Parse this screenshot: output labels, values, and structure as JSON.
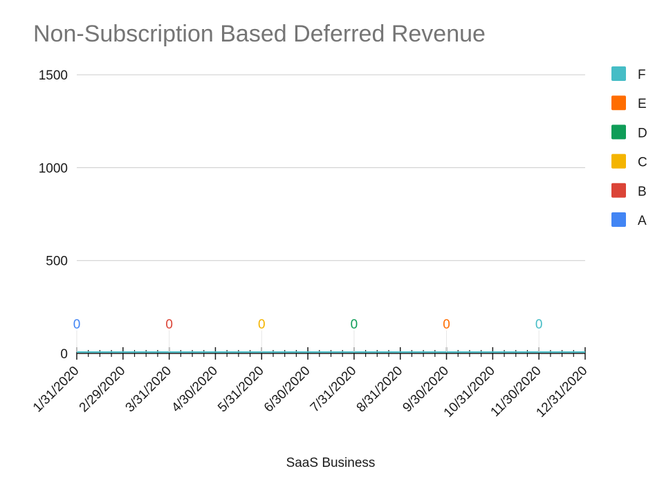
{
  "title": "Non-Subscription Based Deferred Revenue",
  "chart_data": {
    "type": "line",
    "title": "Non-Subscription Based Deferred Revenue",
    "xlabel": "SaaS Business",
    "ylabel": "",
    "ylim": [
      0,
      1600
    ],
    "yticks": [
      0,
      500,
      1000,
      1500
    ],
    "grid": true,
    "legend": "right",
    "categories": [
      "1/31/2020",
      "2/29/2020",
      "3/31/2020",
      "4/30/2020",
      "5/31/2020",
      "6/30/2020",
      "7/31/2020",
      "8/31/2020",
      "9/30/2020",
      "10/31/2020",
      "11/30/2020",
      "12/31/2020"
    ],
    "series": [
      {
        "name": "A",
        "color": "#4285f4",
        "values": [
          0,
          0,
          0,
          0,
          0,
          0,
          0,
          0,
          0,
          0,
          0,
          0
        ]
      },
      {
        "name": "B",
        "color": "#db4437",
        "values": [
          0,
          0,
          0,
          0,
          0,
          0,
          0,
          0,
          0,
          0,
          0,
          0
        ]
      },
      {
        "name": "C",
        "color": "#f4b400",
        "values": [
          0,
          0,
          0,
          0,
          0,
          0,
          0,
          0,
          0,
          0,
          0,
          0
        ]
      },
      {
        "name": "D",
        "color": "#0f9d58",
        "values": [
          0,
          0,
          0,
          0,
          0,
          0,
          0,
          0,
          0,
          0,
          0,
          0
        ]
      },
      {
        "name": "E",
        "color": "#ff6d00",
        "values": [
          0,
          0,
          0,
          0,
          0,
          0,
          0,
          0,
          0,
          0,
          0,
          0
        ]
      },
      {
        "name": "F",
        "color": "#46bdc6",
        "values": [
          0,
          0,
          0,
          0,
          0,
          0,
          0,
          0,
          0,
          0,
          0,
          0
        ]
      }
    ],
    "legend_order": [
      "F",
      "E",
      "D",
      "C",
      "B",
      "A"
    ],
    "data_labels": [
      {
        "category": "1/31/2020",
        "series": "A",
        "text": "0"
      },
      {
        "category": "3/31/2020",
        "series": "B",
        "text": "0"
      },
      {
        "category": "5/31/2020",
        "series": "C",
        "text": "0"
      },
      {
        "category": "7/31/2020",
        "series": "D",
        "text": "0"
      },
      {
        "category": "9/30/2020",
        "series": "E",
        "text": "0"
      },
      {
        "category": "11/30/2020",
        "series": "F",
        "text": "0"
      }
    ]
  }
}
